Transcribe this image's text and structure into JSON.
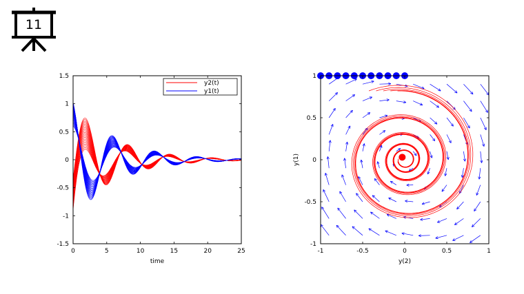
{
  "slide": {
    "number": "11",
    "icon": "presentation-board-icon"
  },
  "chart_data": [
    {
      "type": "line",
      "title": "",
      "xlabel": "time",
      "ylabel": "",
      "xlim": [
        0,
        25
      ],
      "ylim": [
        -1.5,
        1.5
      ],
      "x_ticks": [
        "0",
        "5",
        "10",
        "15",
        "20",
        "25"
      ],
      "y_ticks": [
        "-1.5",
        "-1",
        "-0.5",
        "0",
        "0.5",
        "1",
        "1.5"
      ],
      "legend": {
        "position": "top-right",
        "entries": [
          "y2(t)",
          "y1(t)"
        ]
      },
      "series": [
        {
          "name": "y2(t)",
          "color": "#ff0000",
          "amplitude": 1.0,
          "decay": 0.16,
          "omega": 1.0,
          "phase": -1.57,
          "note": "ensemble of ~20 trajectories with initial y2 from 0 to -1"
        },
        {
          "name": "y1(t)",
          "color": "#0000ff",
          "amplitude": 1.1,
          "decay": 0.16,
          "omega": 1.0,
          "phase": 0.0,
          "note": "ensemble of ~20 trajectories with initial y1 near 1"
        }
      ]
    },
    {
      "type": "scatter",
      "title": "",
      "xlabel": "y(2)",
      "ylabel": "y(1)",
      "xlim": [
        -1,
        1
      ],
      "ylim": [
        -1,
        1
      ],
      "x_ticks": [
        "-1",
        "-0.5",
        "0",
        "0.5",
        "1"
      ],
      "y_ticks": [
        "-1",
        "-0.5",
        "0",
        "0.5",
        "1"
      ],
      "vector_field": {
        "color": "#0000ff",
        "grid": 10
      },
      "initial_points": {
        "color": "#0000ff",
        "y": 1,
        "x": [
          -1.0,
          -0.9,
          -0.8,
          -0.7,
          -0.6,
          -0.5,
          -0.4,
          -0.3,
          -0.2,
          -0.1,
          0.0
        ]
      },
      "trajectories": {
        "color": "#ff0000",
        "count": 6,
        "decay": 0.16
      }
    }
  ]
}
